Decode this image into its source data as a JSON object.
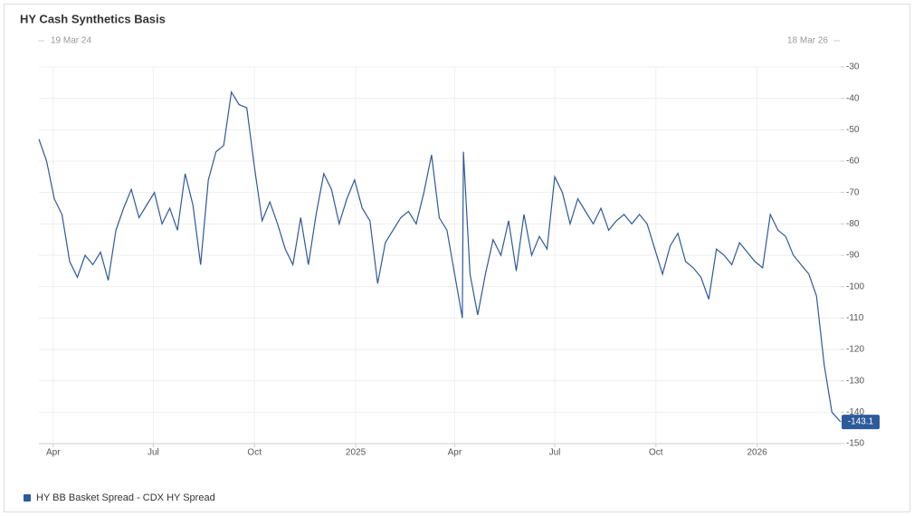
{
  "chart_data": {
    "type": "line",
    "title": "HY Cash Synthetics Basis",
    "range_start": "19 Mar 24",
    "range_end": "18 Mar 26",
    "x": [
      "2024-03-19",
      "2024-03-26",
      "2024-04-02",
      "2024-04-09",
      "2024-04-16",
      "2024-04-23",
      "2024-04-30",
      "2024-05-07",
      "2024-05-14",
      "2024-05-21",
      "2024-05-28",
      "2024-06-04",
      "2024-06-11",
      "2024-06-18",
      "2024-06-25",
      "2024-07-02",
      "2024-07-09",
      "2024-07-16",
      "2024-07-23",
      "2024-07-30",
      "2024-08-06",
      "2024-08-13",
      "2024-08-20",
      "2024-08-27",
      "2024-09-03",
      "2024-09-10",
      "2024-09-17",
      "2024-09-24",
      "2024-10-01",
      "2024-10-08",
      "2024-10-15",
      "2024-10-22",
      "2024-10-29",
      "2024-11-05",
      "2024-11-12",
      "2024-11-19",
      "2024-11-26",
      "2024-12-03",
      "2024-12-10",
      "2024-12-17",
      "2024-12-24",
      "2024-12-31",
      "2025-01-07",
      "2025-01-14",
      "2025-01-21",
      "2025-01-28",
      "2025-02-04",
      "2025-02-11",
      "2025-02-18",
      "2025-02-25",
      "2025-03-04",
      "2025-03-11",
      "2025-03-18",
      "2025-03-25",
      "2025-04-01",
      "2025-04-08",
      "2025-04-09",
      "2025-04-15",
      "2025-04-22",
      "2025-04-29",
      "2025-05-06",
      "2025-05-13",
      "2025-05-20",
      "2025-05-27",
      "2025-06-03",
      "2025-06-10",
      "2025-06-17",
      "2025-06-24",
      "2025-07-01",
      "2025-07-08",
      "2025-07-15",
      "2025-07-22",
      "2025-07-29",
      "2025-08-05",
      "2025-08-12",
      "2025-08-19",
      "2025-08-26",
      "2025-09-02",
      "2025-09-09",
      "2025-09-16",
      "2025-09-23",
      "2025-09-30",
      "2025-10-07",
      "2025-10-14",
      "2025-10-21",
      "2025-10-28",
      "2025-11-04",
      "2025-11-11",
      "2025-11-18",
      "2025-11-25",
      "2025-12-02",
      "2025-12-09",
      "2025-12-16",
      "2025-12-23",
      "2025-12-30",
      "2026-01-06",
      "2026-01-13",
      "2026-01-20",
      "2026-01-27",
      "2026-02-03",
      "2026-02-10",
      "2026-02-17",
      "2026-02-24",
      "2026-03-03",
      "2026-03-10",
      "2026-03-18"
    ],
    "series": [
      {
        "name": "HY BB Basket Spread - CDX HY Spread",
        "color": "#2d5a9a",
        "end_label": "-143.1",
        "values": [
          -53,
          -60,
          -72,
          -77,
          -92,
          -97,
          -90,
          -93,
          -89,
          -98,
          -82,
          -75,
          -69,
          -78,
          -74,
          -70,
          -80,
          -75,
          -82,
          -64,
          -74,
          -93,
          -66,
          -57,
          -55,
          -38,
          -42,
          -43,
          -62,
          -79,
          -73,
          -80,
          -88,
          -93,
          -78,
          -93,
          -77,
          -64,
          -69,
          -80,
          -72,
          -66,
          -75,
          -79,
          -99,
          -86,
          -82,
          -78,
          -76,
          -80,
          -70,
          -58,
          -78,
          -82,
          -96,
          -110,
          -57,
          -96,
          -109,
          -96,
          -85,
          -90,
          -79,
          -95,
          -77,
          -90,
          -84,
          -88,
          -65,
          -70,
          -80,
          -72,
          -76,
          -80,
          -75,
          -82,
          -79,
          -77,
          -80,
          -77,
          -80,
          -88,
          -96,
          -87,
          -83,
          -92,
          -94,
          -97,
          -104,
          -88,
          -90,
          -93,
          -86,
          -89,
          -92,
          -94,
          -77,
          -82,
          -84,
          -90,
          -93,
          -96,
          -103,
          -125,
          -140,
          -143.1
        ]
      }
    ],
    "xlim": [
      "2024-03-19",
      "2026-03-18"
    ],
    "xticks": [
      {
        "value": "2024-04-01",
        "label": "Apr"
      },
      {
        "value": "2024-07-01",
        "label": "Jul"
      },
      {
        "value": "2024-10-01",
        "label": "Oct"
      },
      {
        "value": "2025-01-01",
        "label": "2025"
      },
      {
        "value": "2025-04-01",
        "label": "Apr"
      },
      {
        "value": "2025-07-01",
        "label": "Jul"
      },
      {
        "value": "2025-10-01",
        "label": "Oct"
      },
      {
        "value": "2026-01-01",
        "label": "2026"
      }
    ],
    "ylim": [
      -150,
      -30
    ],
    "yticks": [
      -30,
      -40,
      -50,
      -60,
      -70,
      -80,
      -90,
      -100,
      -110,
      -120,
      -130,
      -140,
      -150
    ],
    "grid": true
  }
}
